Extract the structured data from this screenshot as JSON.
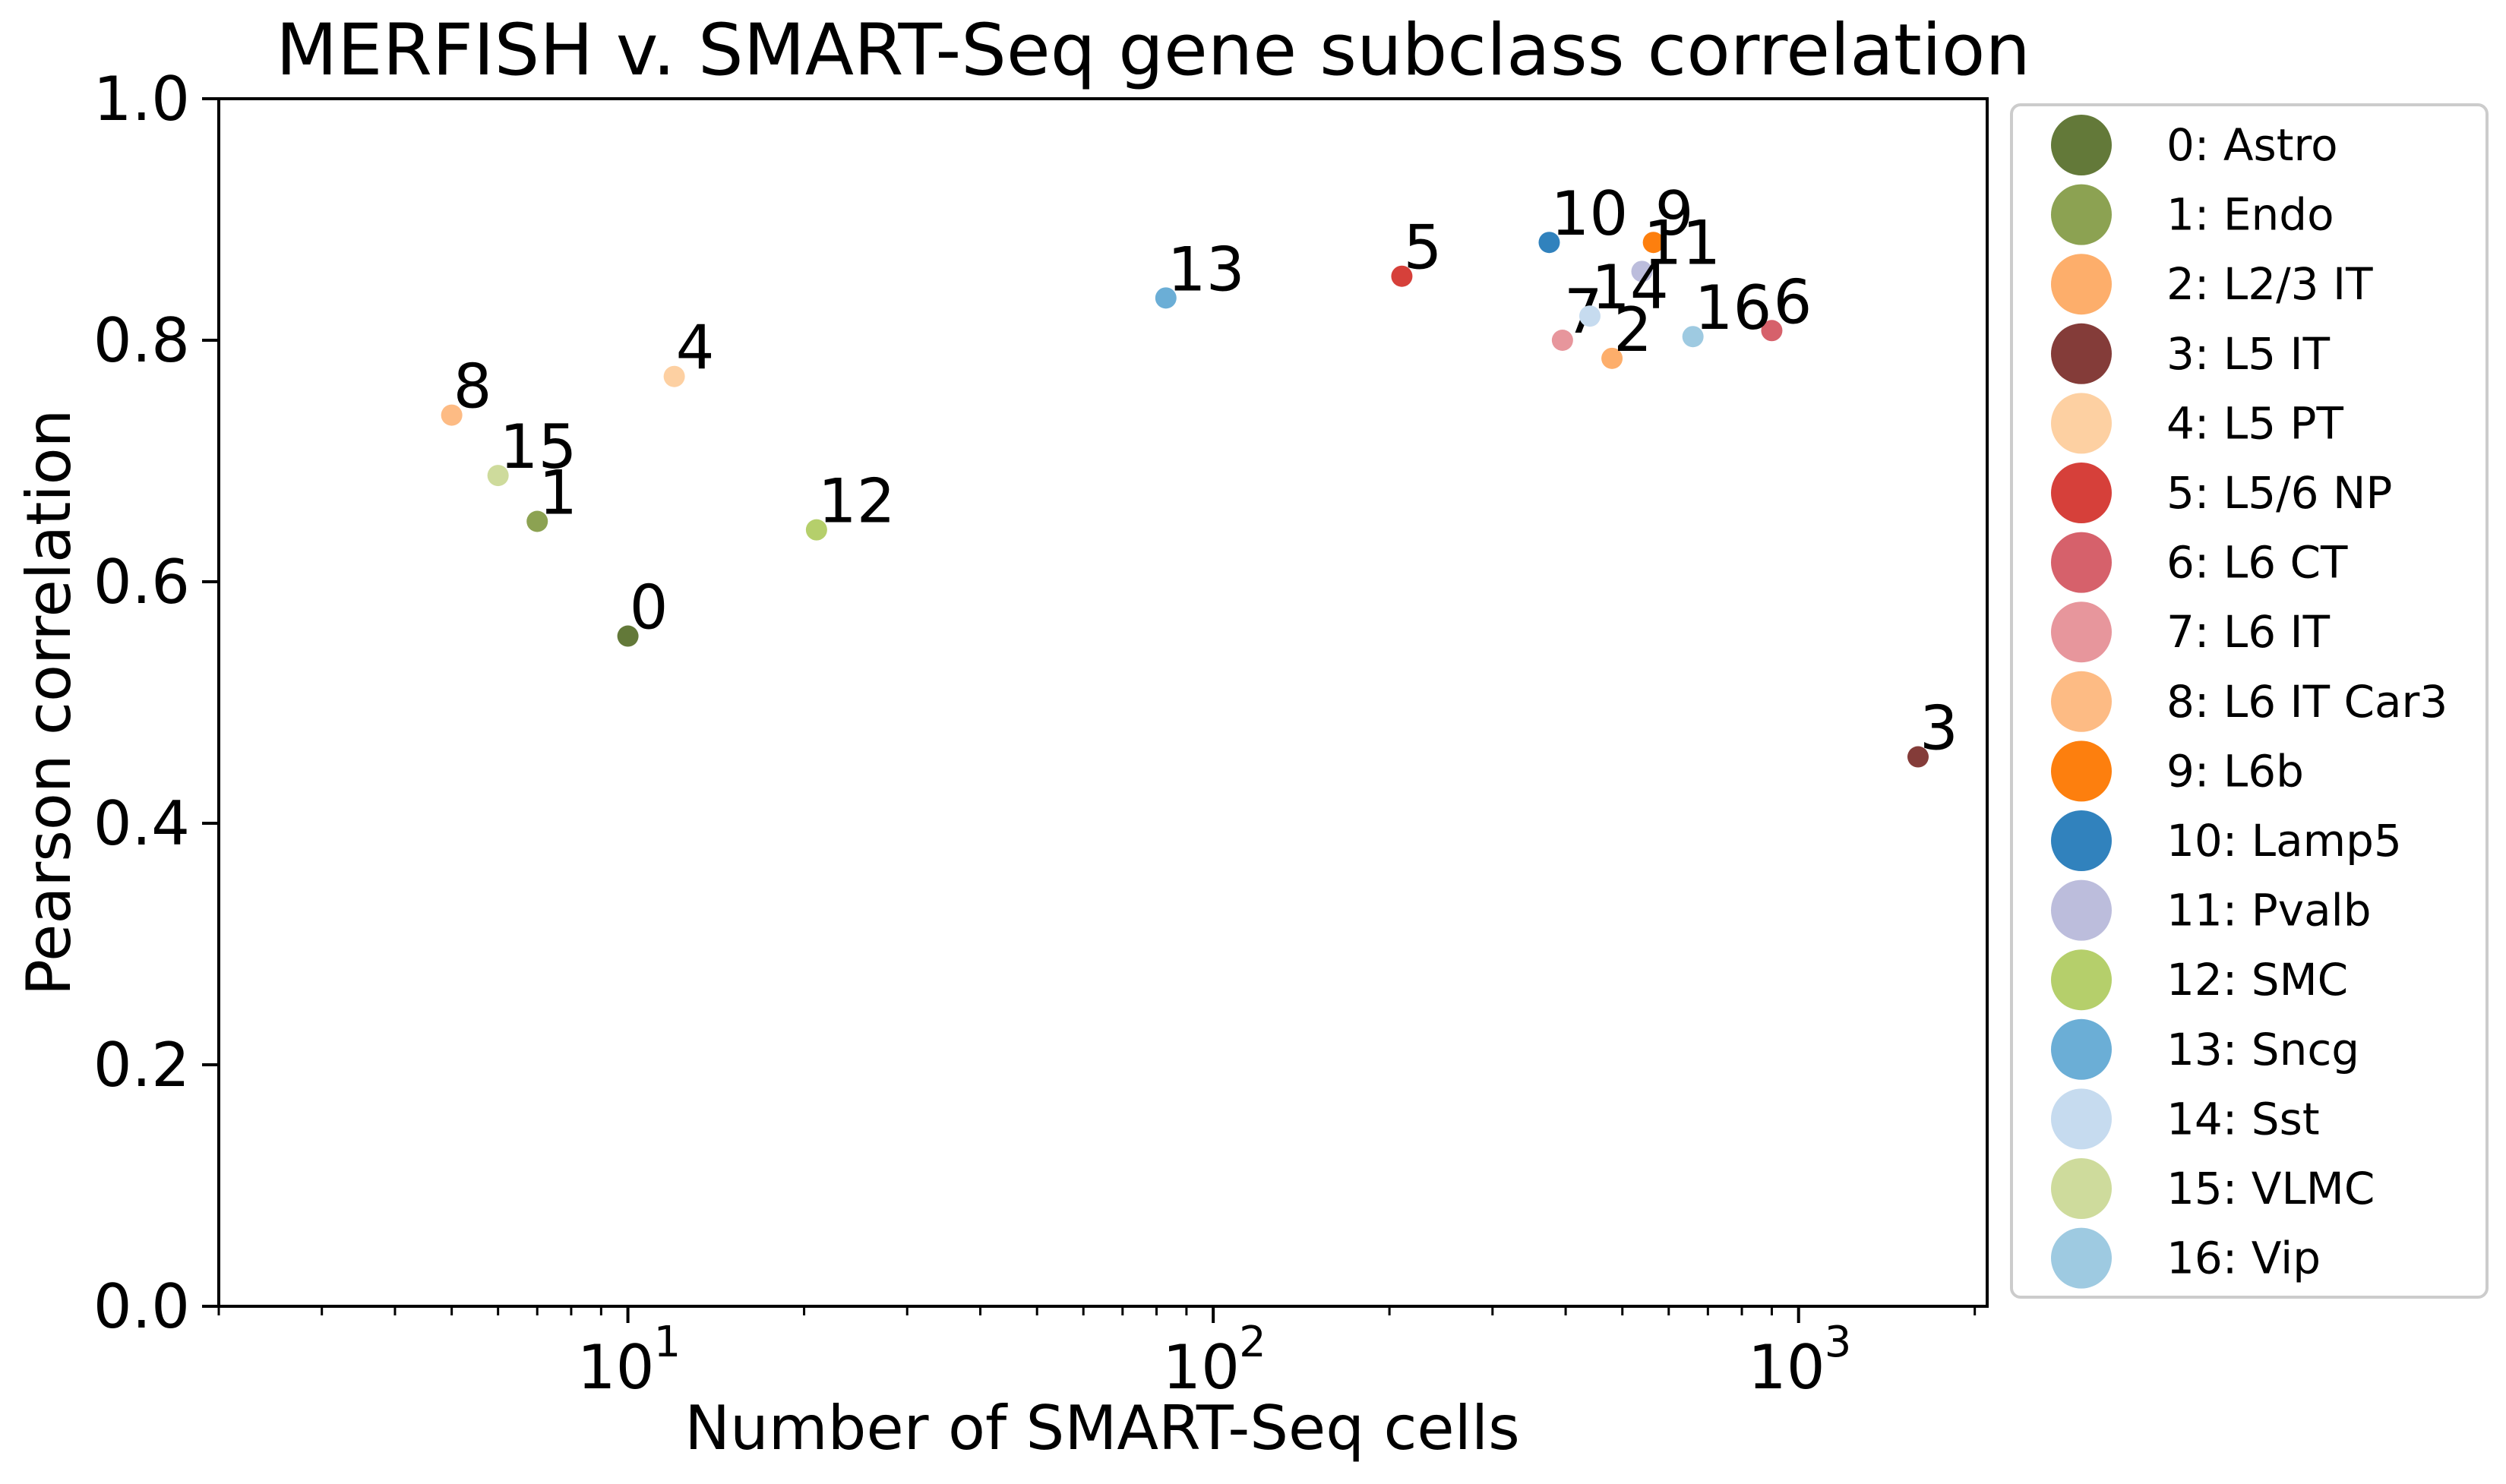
{
  "chart_data": {
    "type": "scatter",
    "title": "MERFISH v. SMART-Seq gene subclass correlation",
    "xlabel": "Number of SMART-Seq cells",
    "ylabel": "Pearson correlation",
    "xscale": "log",
    "xlim": [
      2,
      2100
    ],
    "ylim": [
      0,
      1.0
    ],
    "yticks": [
      "0.0",
      "0.2",
      "0.4",
      "0.6",
      "0.8",
      "1.0"
    ],
    "xticks": [
      {
        "base": "10",
        "exp": "1",
        "value": 10
      },
      {
        "base": "10",
        "exp": "2",
        "value": 100
      },
      {
        "base": "10",
        "exp": "3",
        "value": 1000
      }
    ],
    "grid": false,
    "legend_position": "outside-right",
    "series": [
      {
        "label": "0",
        "legend": "0: Astro",
        "color": "#637939",
        "x": 10,
        "y": 0.555
      },
      {
        "label": "1",
        "legend": "1: Endo",
        "color": "#8ca252",
        "x": 7,
        "y": 0.65
      },
      {
        "label": "2",
        "legend": "2: L2/3 IT",
        "color": "#fdae6b",
        "x": 480,
        "y": 0.785
      },
      {
        "label": "3",
        "legend": "3: L5 IT",
        "color": "#843c39",
        "x": 1600,
        "y": 0.455
      },
      {
        "label": "4",
        "legend": "4: L5 PT",
        "color": "#fdd0a2",
        "x": 12,
        "y": 0.77
      },
      {
        "label": "5",
        "legend": "5: L5/6 NP",
        "color": "#d6403a",
        "x": 210,
        "y": 0.853
      },
      {
        "label": "6",
        "legend": "6: L6 CT",
        "color": "#d6616b",
        "x": 900,
        "y": 0.808
      },
      {
        "label": "7",
        "legend": "7: L6 IT",
        "color": "#e7969c",
        "x": 395,
        "y": 0.8
      },
      {
        "label": "8",
        "legend": "8: L6 IT Car3",
        "color": "#fdbb84",
        "x": 5,
        "y": 0.738
      },
      {
        "label": "9",
        "legend": "9: L6b",
        "color": "#fd7f0e",
        "x": 565,
        "y": 0.881
      },
      {
        "label": "10",
        "legend": "10: Lamp5",
        "color": "#3182bd",
        "x": 375,
        "y": 0.881
      },
      {
        "label": "11",
        "legend": "11: Pvalb",
        "color": "#bcbddc",
        "x": 540,
        "y": 0.857
      },
      {
        "label": "12",
        "legend": "12: SMC",
        "color": "#b5cf6b",
        "x": 21,
        "y": 0.643
      },
      {
        "label": "13",
        "legend": "13: Sncg",
        "color": "#6baed6",
        "x": 83,
        "y": 0.835
      },
      {
        "label": "14",
        "legend": "14: Sst",
        "color": "#c6dbef",
        "x": 440,
        "y": 0.82
      },
      {
        "label": "15",
        "legend": "15: VLMC",
        "color": "#cedb9c",
        "x": 6,
        "y": 0.688
      },
      {
        "label": "16",
        "legend": "16: Vip",
        "color": "#9ecae1",
        "x": 660,
        "y": 0.803
      }
    ]
  }
}
